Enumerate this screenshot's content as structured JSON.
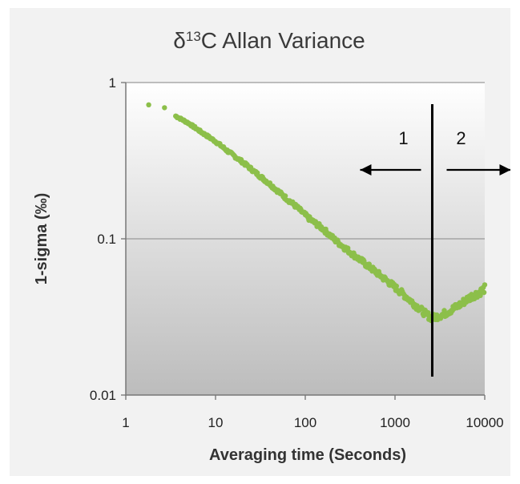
{
  "chart_data": {
    "type": "scatter",
    "title": "δ13C Allan Variance",
    "title_parts": {
      "prefix": "δ",
      "sup": "13",
      "suffix": "C Allan Variance"
    },
    "xlabel": "Averaging time (Seconds)",
    "ylabel": "1-sigma  (‰)",
    "x_scale": "log",
    "y_scale": "log",
    "xlim": [
      1,
      10000
    ],
    "ylim": [
      0.01,
      1
    ],
    "x_ticks": [
      "1",
      "10",
      "100",
      "1000",
      "10000"
    ],
    "y_ticks": [
      "0.01",
      "0.1",
      "1"
    ],
    "grid": "horizontal",
    "legend": "none",
    "colors": {
      "series": "#8cbf4a",
      "plot_top": "#ffffff",
      "plot_bottom": "#bcbcbc",
      "frame": "#f2f2f2"
    },
    "series": [
      {
        "x": [
          1.8,
          2.7,
          3.6,
          5,
          7,
          10,
          14,
          20,
          28,
          40,
          56,
          80,
          110,
          160,
          220,
          310,
          440,
          620,
          880,
          1250,
          1750,
          2200,
          2600,
          3000,
          3500,
          4200,
          5000,
          6000,
          7200,
          8500,
          10000
        ],
        "y": [
          0.72,
          0.69,
          0.61,
          0.55,
          0.48,
          0.42,
          0.36,
          0.31,
          0.265,
          0.225,
          0.19,
          0.16,
          0.135,
          0.115,
          0.097,
          0.083,
          0.071,
          0.061,
          0.052,
          0.044,
          0.037,
          0.033,
          0.031,
          0.032,
          0.033,
          0.035,
          0.037,
          0.04,
          0.043,
          0.045,
          0.048
        ]
      }
    ],
    "annotations": {
      "divider_x": 2600,
      "regions": [
        {
          "label": "1",
          "direction": "left"
        },
        {
          "label": "2",
          "direction": "right"
        }
      ]
    }
  }
}
